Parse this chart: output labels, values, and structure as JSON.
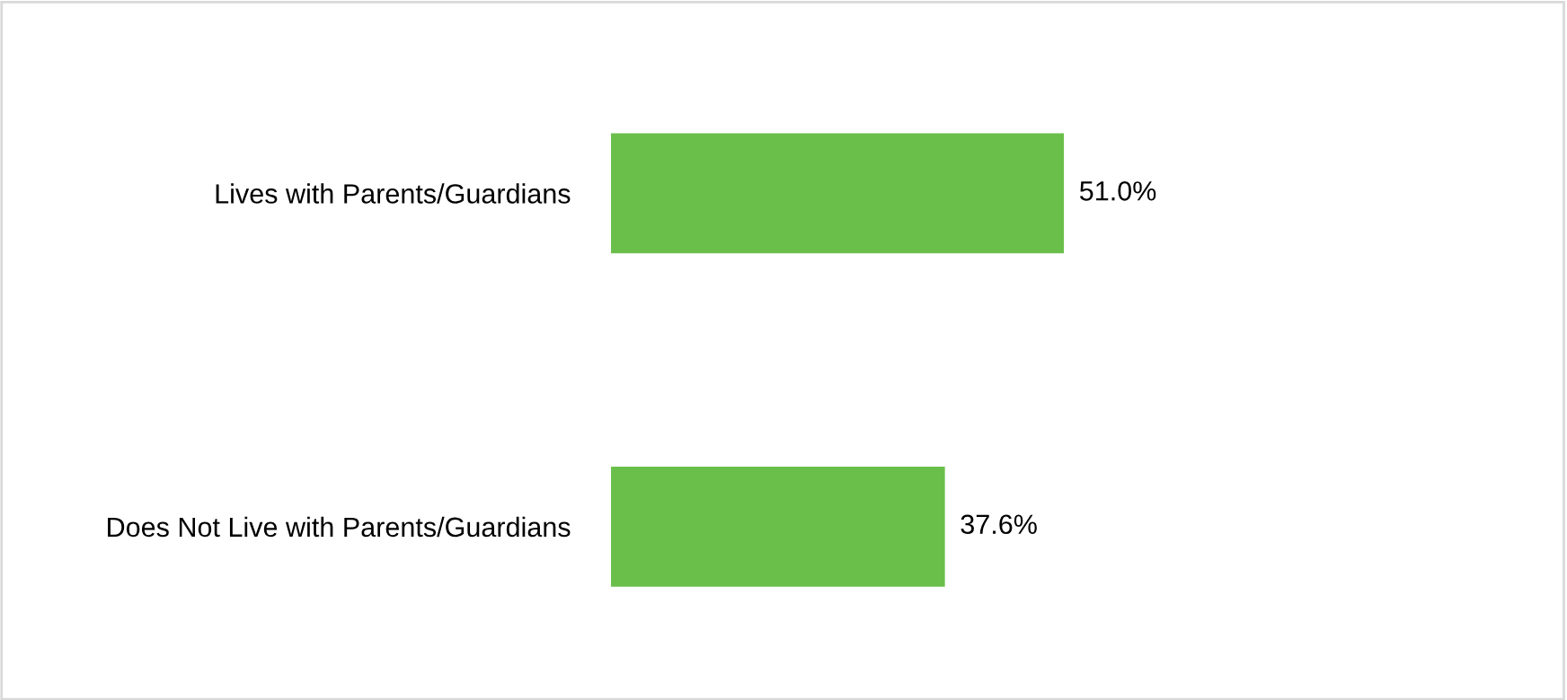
{
  "chart_data": {
    "type": "bar",
    "orientation": "horizontal",
    "categories": [
      "Lives with Parents/Guardians",
      "Does Not Live with Parents/Guardians"
    ],
    "values": [
      51.0,
      37.6
    ],
    "value_labels": [
      "51.0%",
      "37.6%"
    ],
    "color": "#6abf4b",
    "grid": false,
    "legend": false
  }
}
